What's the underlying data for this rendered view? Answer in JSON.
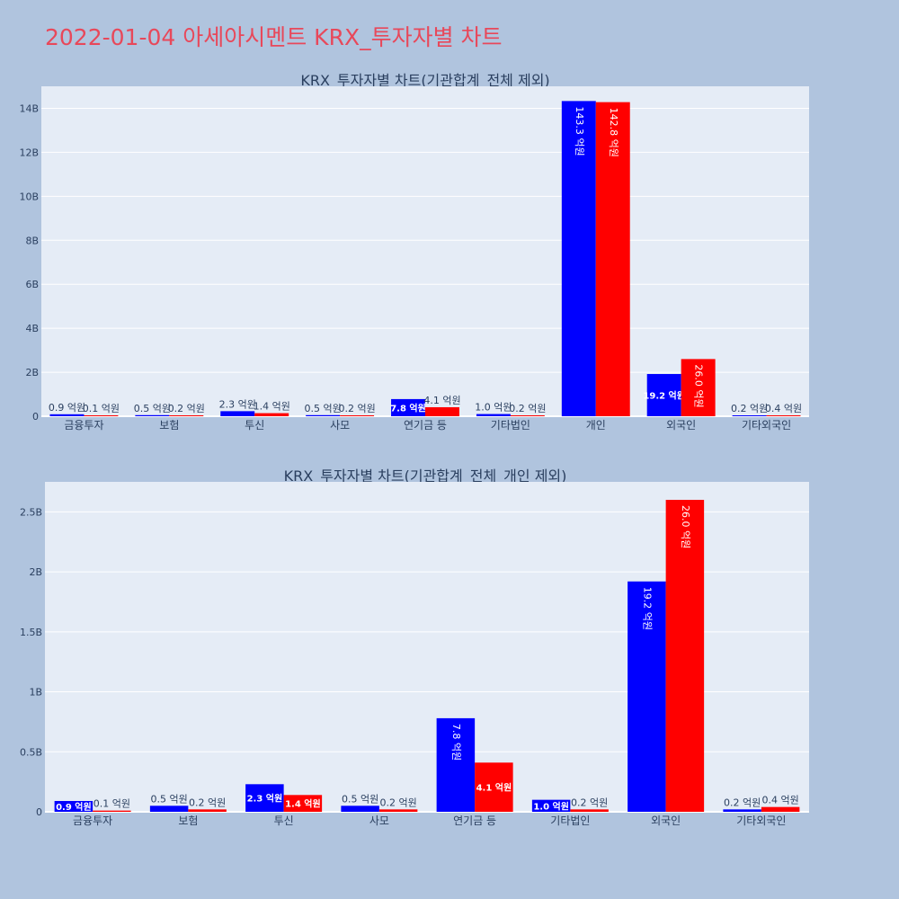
{
  "page": {
    "title": "2022-01-04 아세아시멘트 KRX_투자자별 차트"
  },
  "colors": {
    "buy": "#0000ff",
    "sell": "#ff0000",
    "plot_bg": "#e5ecf6",
    "page_bg": "#b0c4de",
    "title": "#e8485a"
  },
  "chart_data": [
    {
      "type": "bar",
      "title": "KRX_투자자별 차트(기관합계_전체 제외)",
      "categories": [
        "금융투자",
        "보험",
        "투신",
        "사모",
        "연기금 등",
        "기타법인",
        "개인",
        "외국인",
        "기타외국인"
      ],
      "series": [
        {
          "values": [
            90000000,
            50000000,
            230000000,
            50000000,
            780000000,
            100000000,
            14330000000,
            1920000000,
            20000000
          ],
          "labels": [
            "0.9 억원",
            "0.5 억원",
            "2.3 억원",
            "0.5 억원",
            "7.8 억원",
            "1.0 억원",
            "143.3 억원",
            "19.2 억원",
            "0.2 억원"
          ]
        },
        {
          "values": [
            10000000,
            20000000,
            140000000,
            20000000,
            410000000,
            20000000,
            14280000000,
            2600000000,
            40000000
          ],
          "labels": [
            "0.1 억원",
            "0.2 억원",
            "1.4 억원",
            "0.2 억원",
            "4.1 억원",
            "0.2 억원",
            "142.8 억원",
            "26.0 억원",
            "0.4 억원"
          ]
        }
      ],
      "ylim": [
        0,
        15000000000
      ],
      "yticks": [
        0,
        2000000000,
        4000000000,
        6000000000,
        8000000000,
        10000000000,
        12000000000,
        14000000000
      ],
      "ytick_labels": [
        "0",
        "2B",
        "4B",
        "6B",
        "8B",
        "10B",
        "12B",
        "14B"
      ],
      "grid": true
    },
    {
      "type": "bar",
      "title": "KRX_투자자별 차트(기관합계_전체_개인 제외)",
      "categories": [
        "금융투자",
        "보험",
        "투신",
        "사모",
        "연기금 등",
        "기타법인",
        "외국인",
        "기타외국인"
      ],
      "series": [
        {
          "values": [
            90000000,
            50000000,
            230000000,
            50000000,
            780000000,
            100000000,
            1920000000,
            20000000
          ],
          "labels": [
            "0.9 억원",
            "0.5 억원",
            "2.3 억원",
            "0.5 억원",
            "7.8 억원",
            "1.0 억원",
            "19.2 억원",
            "0.2 억원"
          ]
        },
        {
          "values": [
            10000000,
            20000000,
            140000000,
            20000000,
            410000000,
            20000000,
            2600000000,
            40000000
          ],
          "labels": [
            "0.1 억원",
            "0.2 억원",
            "1.4 억원",
            "0.2 억원",
            "4.1 억원",
            "0.2 억원",
            "26.0 억원",
            "0.4 억원"
          ]
        }
      ],
      "ylim": [
        0,
        2750000000
      ],
      "yticks": [
        0,
        500000000,
        1000000000,
        1500000000,
        2000000000,
        2500000000
      ],
      "ytick_labels": [
        "0",
        "0.5B",
        "1B",
        "1.5B",
        "2B",
        "2.5B"
      ],
      "grid": true
    }
  ]
}
